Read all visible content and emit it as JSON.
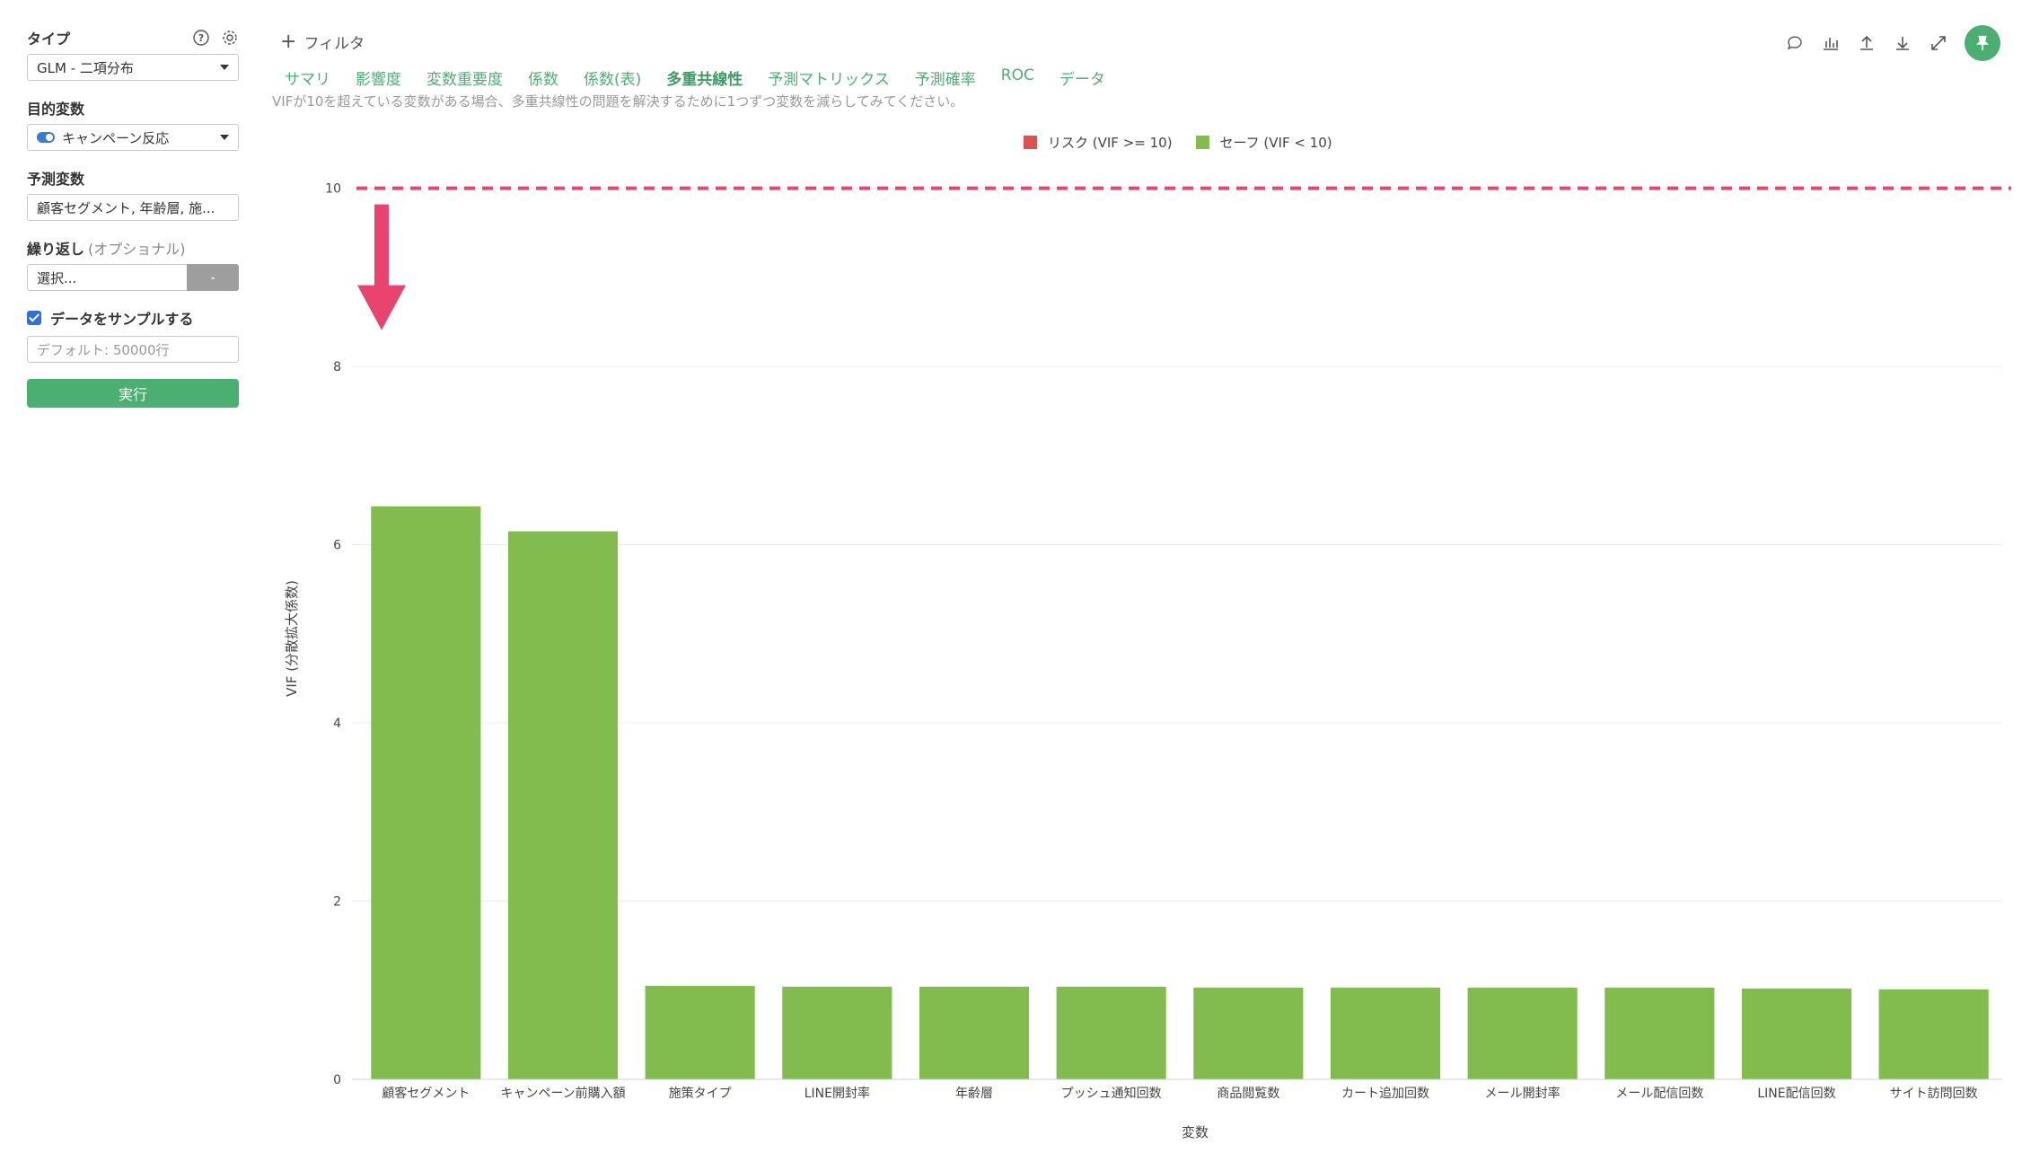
{
  "sidebar": {
    "type_label": "タイプ",
    "type_value": "GLM - 二項分布",
    "target_label": "目的変数",
    "target_value": "キャンペーン反応",
    "predictors_label": "予測変数",
    "predictors_value": "顧客セグメント, 年齢層, 施...",
    "repeat_label": "繰り返し",
    "repeat_optional": "(オプショナル)",
    "repeat_placeholder": "選択...",
    "repeat_button": "-",
    "sample_label": "データをサンプルする",
    "sample_placeholder": "デフォルト: 50000行",
    "run_label": "実行"
  },
  "header": {
    "filter_label": "フィルタ",
    "tabs": [
      "サマリ",
      "影響度",
      "変数重要度",
      "係数",
      "係数(表)",
      "多重共線性",
      "予測マトリックス",
      "予測確率",
      "ROC",
      "データ"
    ],
    "active_tab": "多重共線性",
    "hint": "VIFが10を超えている変数がある場合、多重共線性の問題を解決するために1つずつ変数を減らしてみてください。"
  },
  "colors": {
    "accent": "#4caf72",
    "risk": "#d9534f",
    "safe": "#82bc4e",
    "threshold": "#e8446f"
  },
  "chart_data": {
    "type": "bar",
    "title": "",
    "xlabel": "変数",
    "ylabel": "VIF (分散拡大係数)",
    "ylim": [
      0,
      10.5
    ],
    "yticks": [
      0,
      2,
      4,
      6,
      8,
      10
    ],
    "threshold": 10,
    "legend": [
      "リスク (VIF >= 10)",
      "セーフ (VIF < 10)"
    ],
    "legend_position": "top-center",
    "categories": [
      "顧客セグメント",
      "キャンペーン前購入額",
      "施策タイプ",
      "LINE開封率",
      "年齢層",
      "プッシュ通知回数",
      "商品閲覧数",
      "カート追加回数",
      "メール開封率",
      "メール配信回数",
      "LINE配信回数",
      "サイト訪問回数"
    ],
    "values": [
      6.43,
      6.15,
      1.05,
      1.04,
      1.04,
      1.04,
      1.03,
      1.03,
      1.03,
      1.03,
      1.02,
      1.01
    ]
  }
}
